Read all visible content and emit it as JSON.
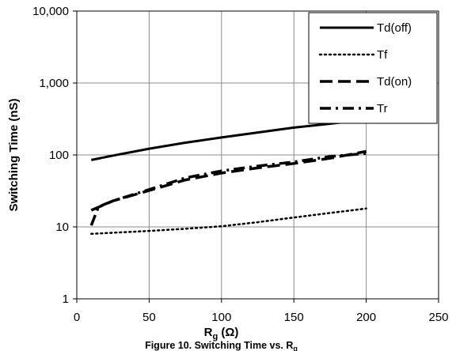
{
  "chart_data": {
    "type": "line",
    "title": "",
    "caption": {
      "prefix": "Figure 10. Switching Time vs. R",
      "subscript": "g"
    },
    "xlabel": {
      "main": "R",
      "subscript": "g",
      "unit": " (Ω)"
    },
    "ylabel": "Switching Time  (nS)",
    "xlim": [
      0,
      250
    ],
    "ylim": [
      1,
      10000
    ],
    "yscale": "log",
    "grid": true,
    "legend_position": "top-right",
    "x_ticks": [
      0,
      50,
      100,
      150,
      200,
      250
    ],
    "y_ticks": [
      1,
      10,
      100,
      1000,
      10000
    ],
    "x_tick_labels": [
      "0",
      "50",
      "100",
      "150",
      "200",
      "250"
    ],
    "y_tick_labels": [
      "1",
      "10",
      "100",
      "1,000",
      "10,000"
    ],
    "series": [
      {
        "name": "Td(off)",
        "style": "solid",
        "x": [
          10,
          25,
          50,
          75,
          100,
          125,
          150,
          175,
          200
        ],
        "y": [
          85,
          98,
          122,
          148,
          175,
          205,
          240,
          272,
          310
        ]
      },
      {
        "name": "Tf",
        "style": "dotted",
        "x": [
          10,
          25,
          50,
          75,
          100,
          125,
          150,
          175,
          200
        ],
        "y": [
          8,
          8.3,
          8.8,
          9.4,
          10.2,
          11.6,
          13.5,
          15.6,
          18
        ]
      },
      {
        "name": "Td(on)",
        "style": "dashed",
        "x": [
          10,
          25,
          50,
          75,
          100,
          125,
          150,
          175,
          200
        ],
        "y": [
          17,
          23,
          32,
          45,
          56,
          66,
          76,
          90,
          112
        ]
      },
      {
        "name": "Tr",
        "style": "dashdot",
        "x": [
          10,
          15,
          25,
          50,
          75,
          100,
          125,
          150,
          175,
          200
        ],
        "y": [
          10.5,
          19,
          23,
          33,
          48,
          60,
          70,
          80,
          95,
          105
        ]
      }
    ]
  }
}
